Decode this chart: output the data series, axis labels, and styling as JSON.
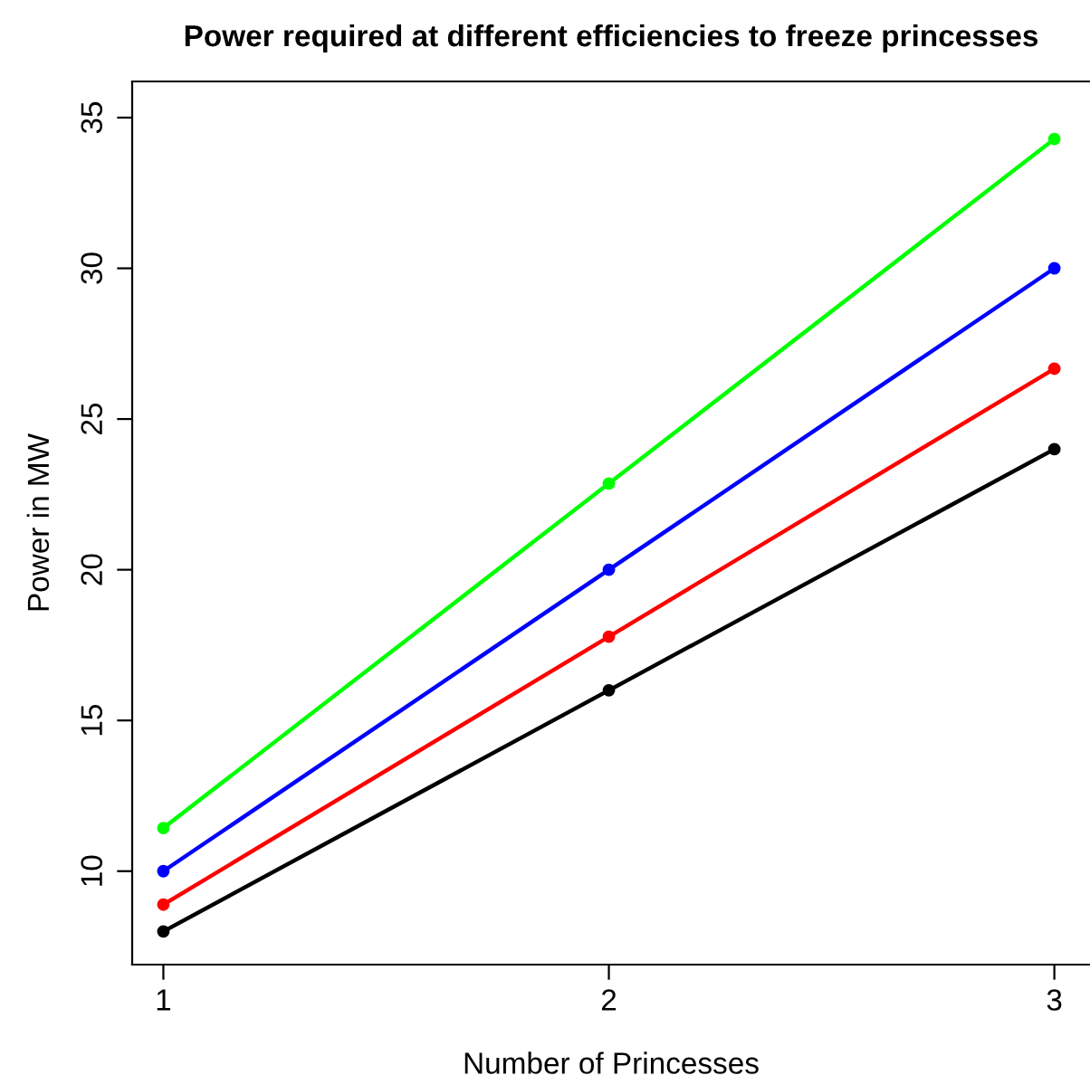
{
  "chart_data": {
    "type": "line",
    "title": "Power required at different efficiencies to freeze princesses",
    "xlabel": "Number of Princesses",
    "ylabel": "Power in MW",
    "x": [
      1,
      2,
      3
    ],
    "series": [
      {
        "color": "#00ff00",
        "values": [
          11.43,
          22.86,
          34.29
        ]
      },
      {
        "color": "#0000ff",
        "values": [
          10,
          20,
          30
        ]
      },
      {
        "color": "#ff0000",
        "values": [
          8.89,
          17.78,
          26.67
        ]
      },
      {
        "color": "#000000",
        "values": [
          8,
          16,
          24
        ]
      }
    ],
    "xlim": [
      0.93,
      3.08
    ],
    "xticks": [
      1,
      2,
      3
    ],
    "ylim": [
      6.9,
      36.2
    ],
    "yticks": [
      10,
      15,
      20,
      25,
      30,
      35
    ],
    "grid": false,
    "legend": false,
    "marker": "circle",
    "line_style": "solid"
  }
}
